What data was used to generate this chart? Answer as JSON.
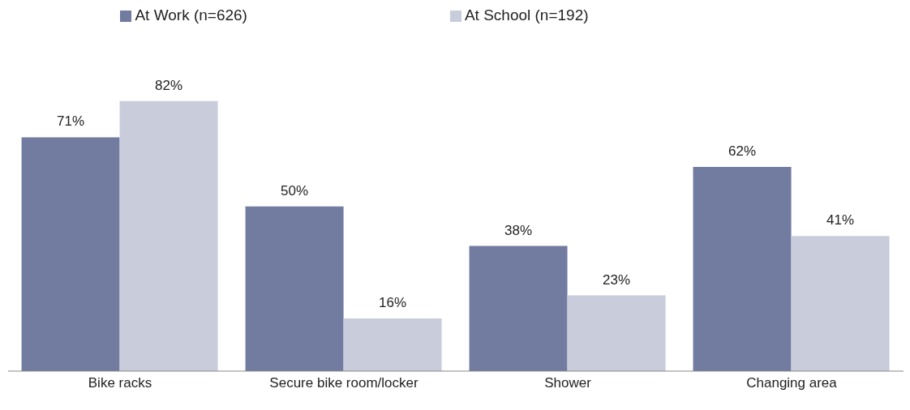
{
  "chart_data": {
    "type": "bar",
    "categories": [
      "Bike racks",
      "Secure bike room/locker",
      "Shower",
      "Changing area"
    ],
    "series": [
      {
        "name": "At Work (n=626)",
        "color": "#727ba0",
        "values": [
          71,
          50,
          38,
          62
        ],
        "value_labels": [
          "71%",
          "50%",
          "38%",
          "62%"
        ]
      },
      {
        "name": "At School (n=192)",
        "color": "#c8ccdb",
        "values": [
          82,
          16,
          23,
          41
        ],
        "value_labels": [
          "82%",
          "16%",
          "23%",
          "41%"
        ]
      }
    ],
    "legend": "top"
  }
}
